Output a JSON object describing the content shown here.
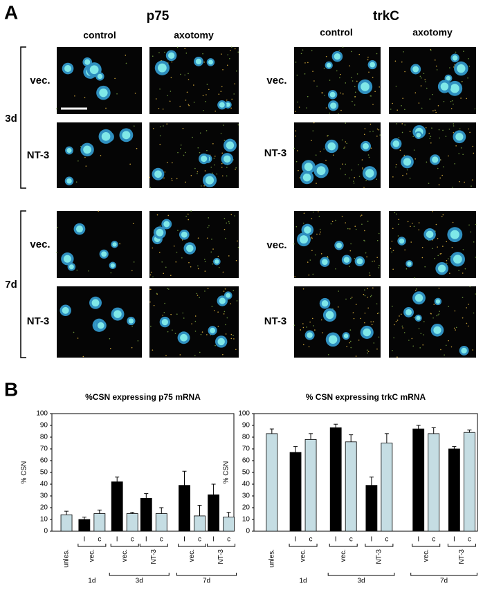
{
  "panel_labels": [
    "A",
    "B"
  ],
  "panel_a": {
    "markers": [
      "p75",
      "trkC"
    ],
    "conditions": [
      "control",
      "axotomy"
    ],
    "rows": [
      "vec.",
      "NT-3",
      "vec.",
      "NT-3"
    ],
    "times": [
      "3d",
      "7d"
    ]
  },
  "chart_data": [
    {
      "type": "bar",
      "title": "%CSN expressing p75 mRNA",
      "y_label": "% CSN",
      "categories": [
        "unles.",
        "vec.",
        "vec.",
        "NT-3",
        "vec.",
        "NT-3"
      ],
      "groups": [
        "1d",
        "3d",
        "7d"
      ],
      "series": [
        {
          "name": "I",
          "color": "#000000",
          "values": [
            null,
            10,
            42,
            28,
            39,
            31
          ],
          "errors": [
            null,
            2,
            4,
            4,
            12,
            9
          ]
        },
        {
          "name": "c",
          "color": "#c5dde3",
          "values": [
            14,
            15,
            15,
            15,
            13,
            12
          ],
          "errors": [
            3,
            3,
            1,
            5,
            9,
            4
          ]
        }
      ],
      "ylim": [
        0,
        100
      ],
      "yticks": [
        0,
        10,
        20,
        30,
        40,
        50,
        60,
        70,
        80,
        90,
        100
      ]
    },
    {
      "type": "bar",
      "title": "% CSN expressing trkC mRNA",
      "y_label": "% CSN",
      "categories": [
        "unles.",
        "vec.",
        "vec.",
        "NT-3",
        "vec.",
        "NT-3"
      ],
      "groups": [
        "1d",
        "3d",
        "7d"
      ],
      "series": [
        {
          "name": "I",
          "color": "#000000",
          "values": [
            null,
            67,
            88,
            39,
            87,
            70
          ],
          "errors": [
            null,
            5,
            3,
            7,
            3,
            2
          ]
        },
        {
          "name": "c",
          "color": "#c5dde3",
          "values": [
            83,
            78,
            76,
            75,
            83,
            84
          ],
          "errors": [
            4,
            5,
            6,
            8,
            5,
            2
          ]
        }
      ],
      "ylim": [
        0,
        100
      ],
      "yticks": [
        0,
        10,
        20,
        30,
        40,
        50,
        60,
        70,
        80,
        90,
        100
      ]
    }
  ]
}
